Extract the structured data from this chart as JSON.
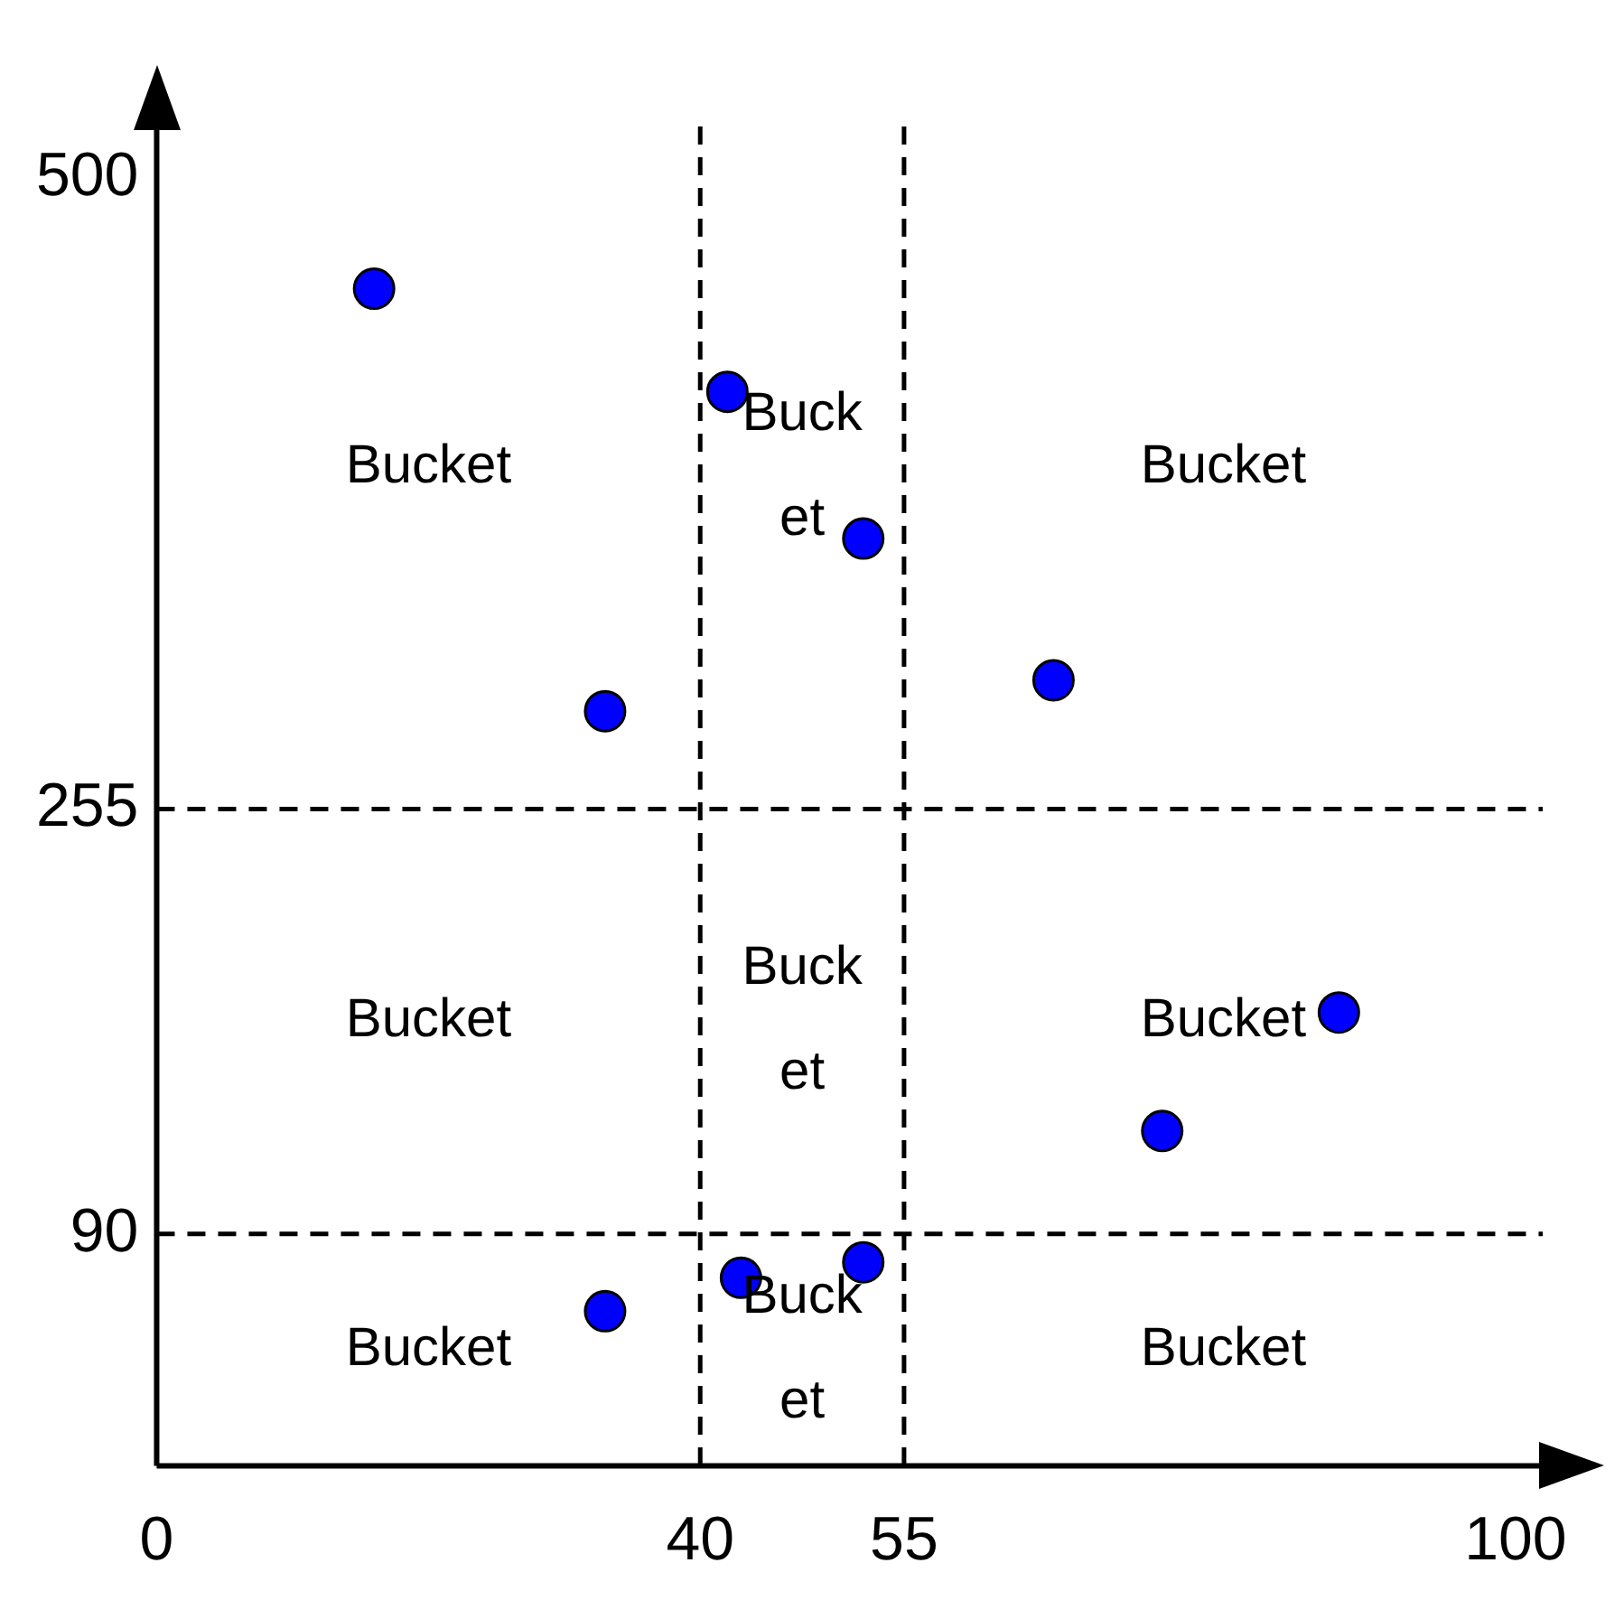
{
  "chart_data": {
    "type": "scatter",
    "x": [
      16,
      42,
      52,
      33,
      66,
      87,
      74,
      33,
      43,
      52
    ],
    "series": [
      {
        "color": "#0000ff",
        "values": [
          457,
          417,
          360,
          293,
          305,
          176,
          130,
          60,
          73,
          79
        ]
      }
    ],
    "xlim": [
      0,
      102
    ],
    "xticks": [
      0,
      40,
      55,
      100
    ],
    "ylim": [
      0,
      520
    ],
    "yticks": [
      90,
      255,
      500
    ],
    "grid": false,
    "legend": false,
    "marker": "circle",
    "ref_lines": [
      {
        "axis": "x",
        "value": 40,
        "line_style": "dashed",
        "color": "#000000"
      },
      {
        "axis": "x",
        "value": 55,
        "line_style": "dashed",
        "color": "#000000"
      },
      {
        "axis": "y",
        "value": 90,
        "line_style": "dashed",
        "color": "#000000"
      },
      {
        "axis": "y",
        "value": 255,
        "line_style": "dashed",
        "color": "#000000"
      }
    ],
    "annotations": [
      "Bucket",
      "Bucket",
      "Bucket",
      "Bucket",
      "Bucket",
      "Bucket",
      "Bucket",
      "Bucket",
      "Bucket"
    ]
  }
}
